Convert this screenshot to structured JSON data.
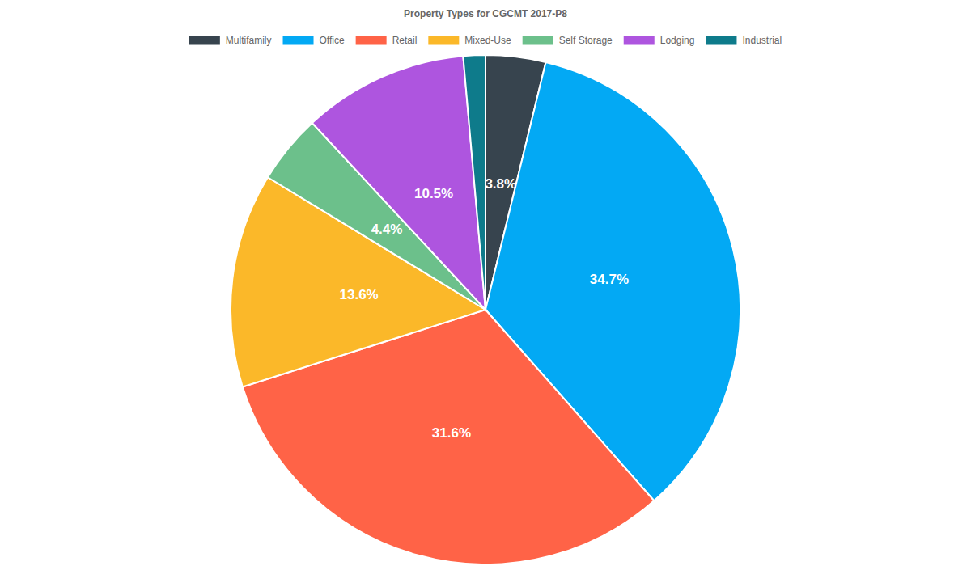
{
  "chart_data": {
    "type": "pie",
    "title": "Property Types for CGCMT 2017-P8",
    "categories": [
      "Multifamily",
      "Office",
      "Retail",
      "Mixed-Use",
      "Self Storage",
      "Lodging",
      "Industrial"
    ],
    "values": [
      3.8,
      34.7,
      31.6,
      13.6,
      4.4,
      10.5,
      1.4
    ],
    "value_labels": [
      "3.8%",
      "34.7%",
      "31.6%",
      "13.6%",
      "4.4%",
      "10.5%",
      null
    ],
    "colors": [
      "#37444e",
      "#03a9f4",
      "#ff6347",
      "#fbb829",
      "#6cc08b",
      "#ae55df",
      "#0e7b8b"
    ],
    "legend": "top",
    "data_labels": true
  }
}
